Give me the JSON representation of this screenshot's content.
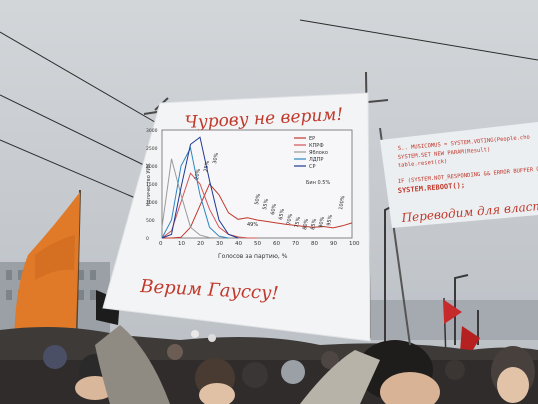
{
  "banner": {
    "top_text": "Чурову не верим!",
    "bottom_text": "Верим Гауссу!"
  },
  "chart_data": {
    "type": "line",
    "title": "",
    "xlabel": "Голосов за партию, %",
    "ylabel": "Количество УИК",
    "xlim": [
      0,
      100
    ],
    "ylim": [
      0,
      3000
    ],
    "x_ticks": [
      "0",
      "10",
      "20",
      "30",
      "40",
      "50",
      "60",
      "70",
      "80",
      "90",
      "100"
    ],
    "y_ticks": [
      "0",
      "500",
      "1000",
      "1500",
      "2000",
      "2500",
      "3000"
    ],
    "series": [
      {
        "name": "ЕР",
        "color": "#c0392b",
        "x": [
          0,
          5,
          10,
          15,
          20,
          25,
          30,
          35,
          40,
          45,
          50,
          55,
          60,
          65,
          70,
          75,
          80,
          85,
          90,
          95,
          100
        ],
        "values": [
          0,
          0,
          20,
          300,
          900,
          1500,
          1200,
          700,
          520,
          560,
          500,
          460,
          420,
          380,
          350,
          320,
          300,
          320,
          280,
          340,
          420
        ]
      },
      {
        "name": "КПРФ",
        "color": "#d35454",
        "x": [
          0,
          5,
          10,
          15,
          20,
          25,
          30,
          35,
          40,
          45,
          50
        ],
        "values": [
          0,
          200,
          1000,
          1800,
          1500,
          800,
          300,
          100,
          30,
          0,
          0
        ]
      },
      {
        "name": "Яблоко",
        "color": "#9a9a9a",
        "x": [
          0,
          5,
          10,
          15,
          20,
          25,
          30
        ],
        "values": [
          300,
          2200,
          1200,
          300,
          80,
          10,
          0
        ]
      },
      {
        "name": "ЛДПР",
        "color": "#2e86c1",
        "x": [
          0,
          5,
          10,
          15,
          20,
          25,
          30,
          35
        ],
        "values": [
          0,
          500,
          2000,
          2500,
          1200,
          300,
          50,
          0
        ]
      },
      {
        "name": "СР",
        "color": "#1f3a93",
        "x": [
          0,
          5,
          10,
          15,
          20,
          25,
          30,
          35,
          40
        ],
        "values": [
          0,
          100,
          1400,
          2600,
          2800,
          1600,
          500,
          100,
          0
        ]
      }
    ],
    "annotations": [
      "20%",
      "25%",
      "30%",
      "49%",
      "50%",
      "55%",
      "60%",
      "65%",
      "70%",
      "75%",
      "80%",
      "85%",
      "90%",
      "95%",
      "100%"
    ],
    "bin_label": "Бин 0.5%",
    "legend": "top-right",
    "grid": false
  },
  "right_banner": {
    "code_lines": [
      "S.. MUSICOMUS = SYSTEM.VOTING(People.cho",
      "SYSTEM.SET NEW PARAM(Result)",
      "table.reset(ck)",
      "IF (SYSTEM.NOT_RESPONDING && ERROR BUFFER OV",
      "SYSTEM.REBOOT();"
    ],
    "bottom_text": "Переводим для власт"
  },
  "colors": {
    "sky": "#c8ccd0",
    "banner": "#f3f4f6",
    "banner_text": "#c0392b",
    "flag": "#e07a28"
  }
}
